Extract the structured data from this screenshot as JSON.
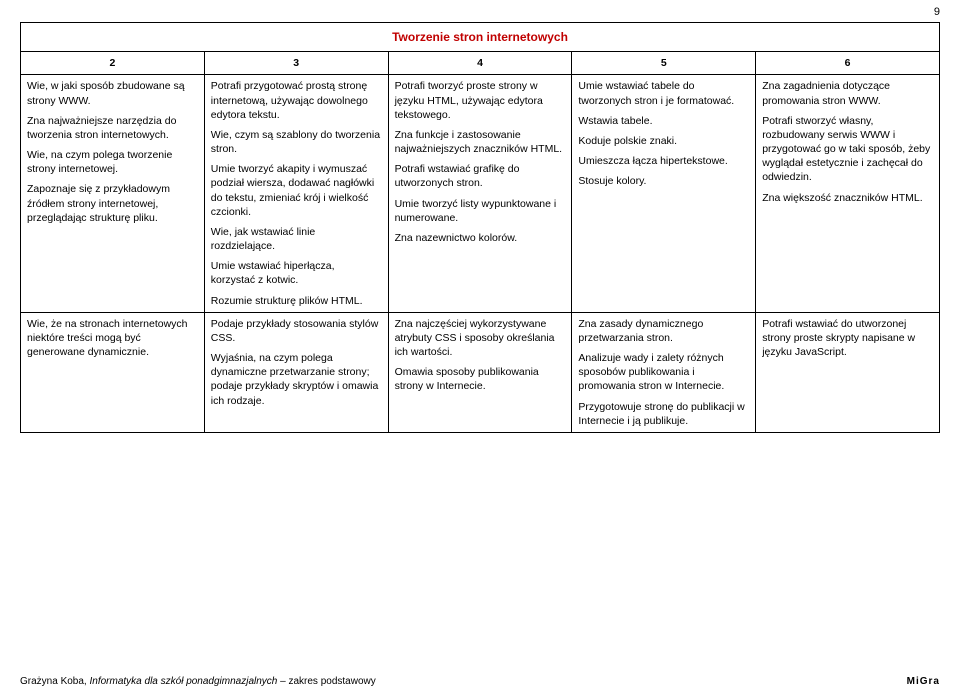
{
  "pageNumber": "9",
  "table": {
    "title": "Tworzenie stron internetowych",
    "columns": [
      "2",
      "3",
      "4",
      "5",
      "6"
    ],
    "rows": [
      {
        "c2": [
          "Wie, w jaki sposób zbudowane są strony WWW.",
          "Zna najważniejsze narzędzia do tworzenia stron internetowych.",
          "Wie, na czym polega tworzenie strony internetowej.",
          "Zapoznaje się z przykładowym źródłem strony internetowej, przeglądając strukturę pliku."
        ],
        "c3": [
          "Potrafi przygotować prostą stronę internetową, używając dowolnego edytora tekstu.",
          "Wie, czym są szablony do tworzenia stron.",
          "Umie tworzyć akapity i wymuszać podział wiersza, dodawać nagłówki do tekstu, zmieniać krój i wielkość czcionki.",
          "Wie, jak wstawiać linie rozdzielające.",
          "Umie wstawiać hiperłącza, korzystać z kotwic.",
          "Rozumie strukturę plików HTML."
        ],
        "c4": [
          "Potrafi tworzyć proste strony w języku HTML, używając edytora tekstowego.",
          "Zna funkcje i zastosowanie najważniejszych znaczników HTML.",
          "Potrafi wstawiać grafikę do utworzonych stron.",
          "Umie tworzyć listy wypunktowane i numerowane.",
          "Zna nazewnictwo kolorów."
        ],
        "c5": [
          "Umie wstawiać tabele do tworzonych stron i je formatować.",
          "Wstawia tabele.",
          "Koduje polskie znaki.",
          "Umieszcza łącza hipertekstowe.",
          "Stosuje kolory."
        ],
        "c6": [
          "Zna zagadnienia dotyczące promowania stron WWW.",
          "Potrafi stworzyć własny, rozbudowany serwis WWW i przygotować go w taki sposób, żeby wyglądał estetycznie i zachęcał do odwiedzin.",
          "Zna większość znaczników HTML."
        ]
      },
      {
        "c2": [
          "Wie, że na stronach internetowych niektóre treści mogą być generowane dynamicznie."
        ],
        "c3": [
          "Podaje przykłady stosowania stylów CSS.",
          "Wyjaśnia, na czym polega dynamiczne przetwarzanie strony; podaje przykłady skryptów i omawia ich rodzaje."
        ],
        "c4": [
          "Zna najczęściej wykorzystywane atrybuty CSS i sposoby określania ich wartości.",
          "Omawia sposoby publikowania strony w Internecie."
        ],
        "c5": [
          "Zna zasady dynamicznego przetwarzania stron.",
          "Analizuje wady i zalety różnych sposobów publikowania i promowania stron w Internecie.",
          "Przygotowuje stronę do publikacji w Internecie i ją publikuje."
        ],
        "c6": [
          "Potrafi wstawiać do utworzonej strony proste skrypty napisane w języku JavaScript."
        ]
      }
    ]
  },
  "footer": {
    "authorPrefix": "Grażyna Koba, ",
    "title": "Informatyka dla szkół ponadgimnazjalnych ",
    "suffix": "– zakres podstawowy",
    "publisher": "MiGra"
  },
  "colors": {
    "titleColor": "#c00000",
    "border": "#000000",
    "text": "#000000",
    "background": "#ffffff"
  }
}
